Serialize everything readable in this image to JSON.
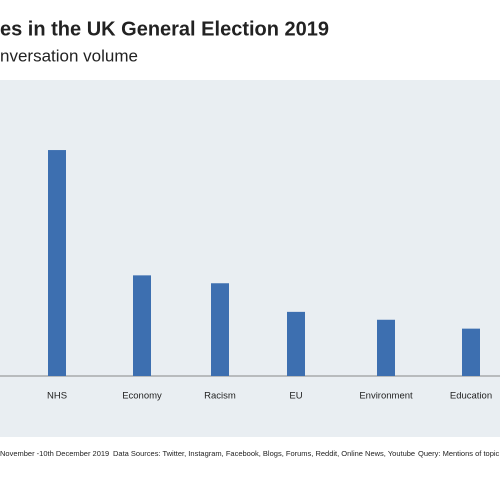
{
  "chart_data": {
    "type": "bar",
    "title": "es in the UK General Election 2019",
    "subtitle": "nversation volume",
    "categories": [
      "NHS",
      "Economy",
      "Racism",
      "EU",
      "Environment",
      "Education"
    ],
    "values": [
      229,
      102,
      94,
      65,
      57,
      48
    ],
    "color": "#3d6fb0",
    "ylim": [
      0,
      300
    ],
    "footer": [
      "November -10th December 2019",
      "Data Sources: Twitter, Instagram, Facebook, Blogs, Forums, Reddit, Online News, Youtube",
      "Query: Mentions of topic"
    ]
  }
}
